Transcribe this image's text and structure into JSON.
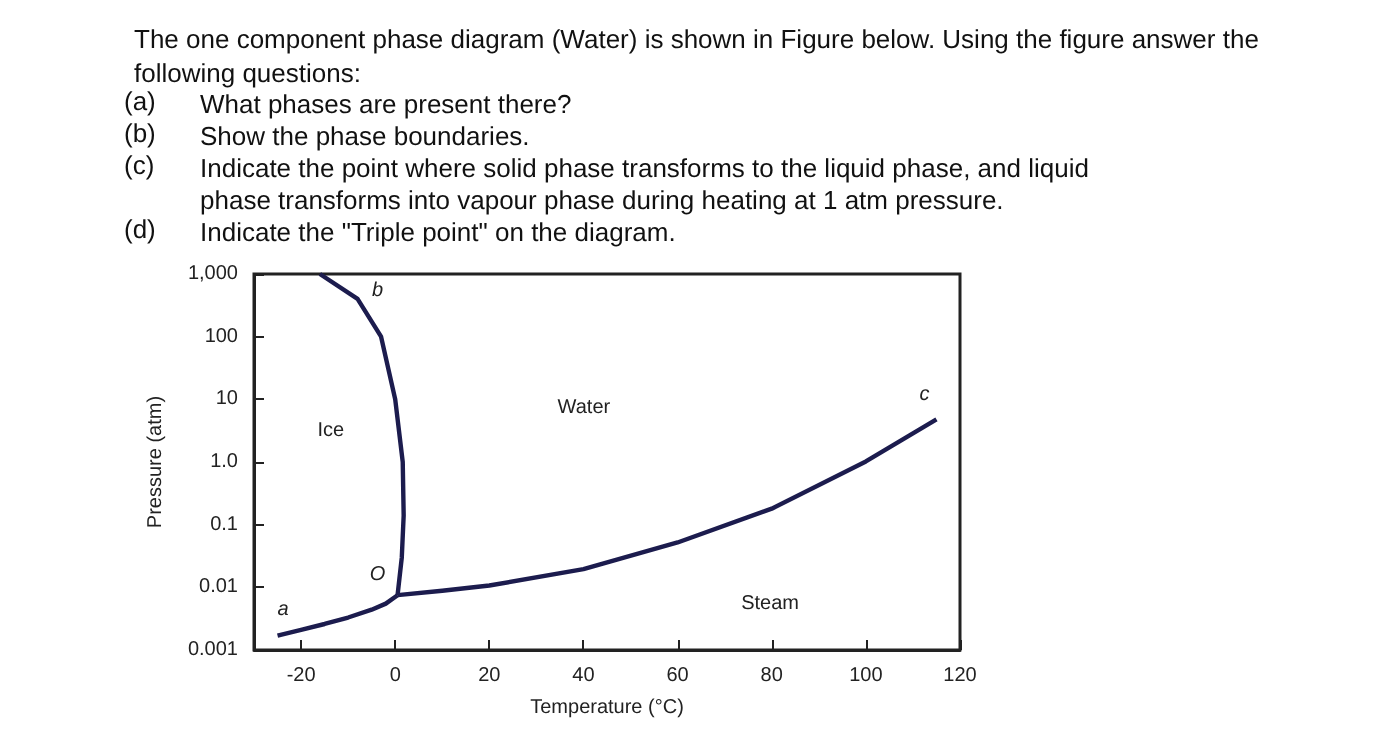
{
  "chart_data": {
    "type": "line",
    "title": "The one component phase diagram (Water) is shown in Figure below. Using the figure answer the following questions:",
    "xlabel": "Temperature (°C)",
    "ylabel": "Pressure (atm)",
    "xlim": [
      -30,
      120
    ],
    "xticks": [
      -20,
      0,
      20,
      40,
      60,
      80,
      100,
      120
    ],
    "ylim": [
      0.001,
      1000
    ],
    "yticks": [
      0.001,
      0.01,
      0.1,
      {
        "value": 1,
        "label": "1.0"
      },
      10,
      100,
      {
        "value": 1000,
        "label": "1,000"
      }
    ],
    "log": "y",
    "grid": false,
    "marker": "none",
    "line_style": "solid",
    "series": [
      {
        "color": "#1c1c4e",
        "x": [
          -25,
          -20,
          -15,
          -10,
          -5,
          -2,
          0.5
        ],
        "values": [
          0.0017,
          0.0021,
          0.0026,
          0.0033,
          0.0044,
          0.0055,
          0.0075
        ]
      },
      {
        "color": "#1c1c4e",
        "x": [
          0.5,
          1.4,
          1.8,
          1.6,
          0,
          -3,
          -8,
          -16
        ],
        "values": [
          0.0075,
          0.03,
          0.14,
          1,
          10,
          100,
          400,
          1000
        ]
      },
      {
        "color": "#1c1c4e",
        "x": [
          0.5,
          10,
          20,
          40,
          60,
          80,
          100,
          115
        ],
        "values": [
          0.0075,
          0.0088,
          0.0107,
          0.0195,
          0.052,
          0.18,
          1.02,
          4.8
        ]
      }
    ],
    "annotations": [
      "(a) What phases are present there?",
      "(b) Show the phase boundaries.",
      "(c) Indicate the point where solid phase transforms to the liquid phase, and liquid phase transforms into vapour phase during heating at 1 atm pressure.",
      "(d) Indicate the \"Triple point\" on the diagram.",
      "Ice",
      "Water",
      "Steam",
      {
        "text": "a",
        "x": -20,
        "y": 0.0021
      },
      {
        "text": "b",
        "x": -8,
        "y": 400
      },
      {
        "text": "c",
        "x": 115,
        "y": 4.8
      },
      {
        "text": "O",
        "x": 0.5,
        "y": 0.0075
      }
    ]
  }
}
